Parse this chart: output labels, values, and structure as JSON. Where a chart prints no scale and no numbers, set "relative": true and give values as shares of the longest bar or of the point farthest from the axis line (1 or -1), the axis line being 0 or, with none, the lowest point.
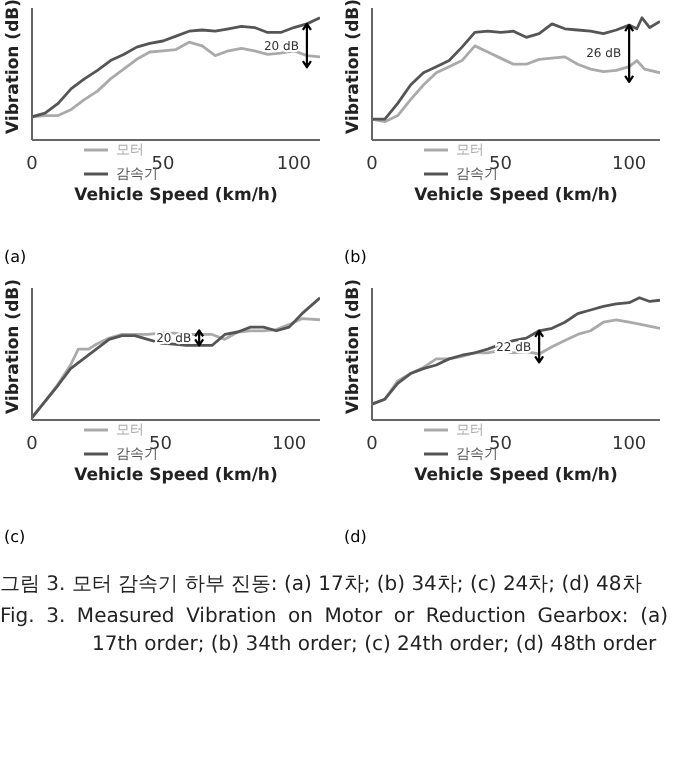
{
  "chart_data": [
    {
      "type": "line",
      "subtitle": "(a)",
      "xlabel": "Vehicle Speed (km/h)",
      "ylabel": "Vibration (dB)",
      "relative": true,
      "xlim": [
        0,
        110
      ],
      "xticks": [
        0,
        50,
        100
      ],
      "legend": "bottom",
      "annotations": [
        {
          "text": "20 dB",
          "x": 105,
          "y": 0.95
        }
      ],
      "series": [
        {
          "name": "모터",
          "color": "#aaaaaa",
          "x": [
            0,
            5,
            10,
            15,
            20,
            25,
            30,
            35,
            40,
            45,
            50,
            55,
            60,
            65,
            70,
            75,
            80,
            85,
            90,
            95,
            100,
            105,
            110
          ],
          "values": [
            0.19,
            0.2,
            0.2,
            0.25,
            0.33,
            0.4,
            0.5,
            0.58,
            0.66,
            0.72,
            0.73,
            0.74,
            0.8,
            0.77,
            0.69,
            0.73,
            0.75,
            0.73,
            0.7,
            0.71,
            0.73,
            0.69,
            0.68
          ]
        },
        {
          "name": "감속기",
          "color": "#555555",
          "x": [
            0,
            5,
            10,
            15,
            20,
            25,
            30,
            35,
            40,
            45,
            50,
            55,
            60,
            65,
            70,
            75,
            80,
            85,
            90,
            95,
            100,
            105,
            110
          ],
          "values": [
            0.19,
            0.22,
            0.3,
            0.42,
            0.5,
            0.57,
            0.65,
            0.7,
            0.76,
            0.79,
            0.81,
            0.85,
            0.89,
            0.9,
            0.89,
            0.91,
            0.93,
            0.92,
            0.88,
            0.88,
            0.92,
            0.95,
            1.0
          ]
        }
      ]
    },
    {
      "type": "line",
      "subtitle": "(b)",
      "xlabel": "Vehicle Speed (km/h)",
      "ylabel": "Vibration (dB)",
      "relative": true,
      "xlim": [
        0,
        112
      ],
      "xticks": [
        0,
        50,
        100
      ],
      "legend": "bottom",
      "annotations": [
        {
          "text": "26 dB",
          "x": 100,
          "y": 0.94
        }
      ],
      "series": [
        {
          "name": "모터",
          "color": "#aaaaaa",
          "x": [
            0,
            5,
            10,
            15,
            20,
            25,
            30,
            35,
            40,
            45,
            50,
            55,
            60,
            65,
            70,
            75,
            80,
            85,
            90,
            95,
            100,
            103,
            106,
            112
          ],
          "values": [
            0.17,
            0.15,
            0.2,
            0.33,
            0.45,
            0.55,
            0.6,
            0.65,
            0.77,
            0.72,
            0.67,
            0.62,
            0.62,
            0.66,
            0.67,
            0.68,
            0.62,
            0.58,
            0.56,
            0.57,
            0.6,
            0.65,
            0.58,
            0.55
          ]
        },
        {
          "name": "감속기",
          "color": "#555555",
          "x": [
            0,
            5,
            10,
            15,
            20,
            25,
            30,
            35,
            40,
            45,
            50,
            55,
            60,
            65,
            70,
            75,
            80,
            85,
            90,
            95,
            100,
            103,
            105,
            108,
            112
          ],
          "values": [
            0.17,
            0.17,
            0.3,
            0.45,
            0.55,
            0.6,
            0.65,
            0.76,
            0.88,
            0.89,
            0.88,
            0.89,
            0.84,
            0.87,
            0.95,
            0.91,
            0.9,
            0.89,
            0.87,
            0.9,
            0.94,
            0.91,
            1.0,
            0.92,
            0.97
          ]
        }
      ]
    },
    {
      "type": "line",
      "subtitle": "(c)",
      "xlabel": "Vehicle Speed (km/h)",
      "ylabel": "Vibration (dB)",
      "relative": true,
      "xlim": [
        0,
        112
      ],
      "xticks": [
        0,
        50,
        100
      ],
      "legend": "bottom",
      "annotations": [
        {
          "text": "20 dB",
          "x": 65,
          "y": 0.61
        }
      ],
      "series": [
        {
          "name": "모터",
          "color": "#aaaaaa",
          "x": [
            0,
            5,
            10,
            15,
            18,
            22,
            25,
            30,
            35,
            40,
            45,
            50,
            55,
            60,
            65,
            70,
            75,
            80,
            85,
            90,
            95,
            100,
            105,
            112
          ],
          "values": [
            0.02,
            0.15,
            0.29,
            0.45,
            0.58,
            0.58,
            0.62,
            0.67,
            0.7,
            0.7,
            0.7,
            0.71,
            0.71,
            0.7,
            0.7,
            0.7,
            0.66,
            0.72,
            0.73,
            0.73,
            0.74,
            0.78,
            0.83,
            0.82
          ]
        },
        {
          "name": "감속기",
          "color": "#555555",
          "x": [
            0,
            5,
            10,
            15,
            20,
            25,
            30,
            35,
            40,
            45,
            50,
            55,
            60,
            65,
            70,
            75,
            80,
            85,
            90,
            95,
            100,
            105,
            112
          ],
          "values": [
            0.02,
            0.15,
            0.28,
            0.42,
            0.5,
            0.58,
            0.66,
            0.69,
            0.69,
            0.66,
            0.63,
            0.62,
            0.61,
            0.61,
            0.61,
            0.7,
            0.72,
            0.76,
            0.76,
            0.73,
            0.76,
            0.87,
            1.0
          ]
        }
      ]
    },
    {
      "type": "line",
      "subtitle": "(d)",
      "xlabel": "Vehicle Speed (km/h)",
      "ylabel": "Vibration (dB)",
      "relative": true,
      "xlim": [
        0,
        112
      ],
      "xticks": [
        0,
        50,
        100
      ],
      "legend": "bottom",
      "annotations": [
        {
          "text": "22 dB",
          "x": 65,
          "y": 0.73
        }
      ],
      "series": [
        {
          "name": "모터",
          "color": "#aaaaaa",
          "x": [
            0,
            5,
            10,
            15,
            20,
            25,
            30,
            35,
            40,
            45,
            50,
            55,
            60,
            65,
            70,
            75,
            80,
            85,
            90,
            95,
            100,
            105,
            112
          ],
          "values": [
            0.13,
            0.17,
            0.32,
            0.38,
            0.43,
            0.5,
            0.5,
            0.52,
            0.55,
            0.55,
            0.57,
            0.55,
            0.56,
            0.54,
            0.6,
            0.65,
            0.7,
            0.73,
            0.8,
            0.82,
            0.8,
            0.78,
            0.75
          ]
        },
        {
          "name": "감속기",
          "color": "#555555",
          "x": [
            0,
            5,
            10,
            15,
            20,
            25,
            30,
            35,
            40,
            45,
            50,
            55,
            60,
            65,
            70,
            75,
            80,
            85,
            90,
            95,
            100,
            104,
            108,
            112
          ],
          "values": [
            0.13,
            0.17,
            0.3,
            0.38,
            0.42,
            0.45,
            0.5,
            0.53,
            0.55,
            0.58,
            0.62,
            0.65,
            0.67,
            0.73,
            0.75,
            0.8,
            0.87,
            0.9,
            0.93,
            0.95,
            0.96,
            1.0,
            0.97,
            0.98
          ]
        }
      ]
    },
    {
      "type": "other",
      "annotations": [
        "그림 3.  모터 감속기 하부 진동: (a) 17차; (b) 34차; (c) 24차; (d) 48차",
        "Fig. 3.  Measured Vibration on Motor or Reduction Gearbox: (a) 17th order; (b) 34th order; (c) 24th order; (d) 48th order"
      ]
    }
  ]
}
